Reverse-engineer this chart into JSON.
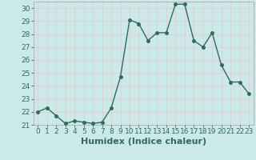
{
  "x": [
    0,
    1,
    2,
    3,
    4,
    5,
    6,
    7,
    8,
    9,
    10,
    11,
    12,
    13,
    14,
    15,
    16,
    17,
    18,
    19,
    20,
    21,
    22,
    23
  ],
  "y": [
    22,
    22.3,
    21.7,
    21.1,
    21.3,
    21.2,
    21.1,
    21.2,
    22.3,
    24.7,
    29.1,
    28.8,
    27.5,
    28.1,
    28.1,
    30.3,
    30.3,
    27.5,
    27,
    28.1,
    25.6,
    24.3,
    24.3,
    23.4
  ],
  "line_color": "#2e6b5e",
  "marker": "o",
  "marker_size": 2.5,
  "linewidth": 1.0,
  "xlabel": "Humidex (Indice chaleur)",
  "xlim": [
    -0.5,
    23.5
  ],
  "ylim": [
    21,
    30.5
  ],
  "yticks": [
    21,
    22,
    23,
    24,
    25,
    26,
    27,
    28,
    29,
    30
  ],
  "xticks": [
    0,
    1,
    2,
    3,
    4,
    5,
    6,
    7,
    8,
    9,
    10,
    11,
    12,
    13,
    14,
    15,
    16,
    17,
    18,
    19,
    20,
    21,
    22,
    23
  ],
  "bg_color": "#cce9e9",
  "grid_color": "#e8c8c8",
  "xlabel_fontsize": 8,
  "tick_fontsize": 6.5,
  "tick_color": "#2e6b5e",
  "spine_color": "#aaaaaa"
}
